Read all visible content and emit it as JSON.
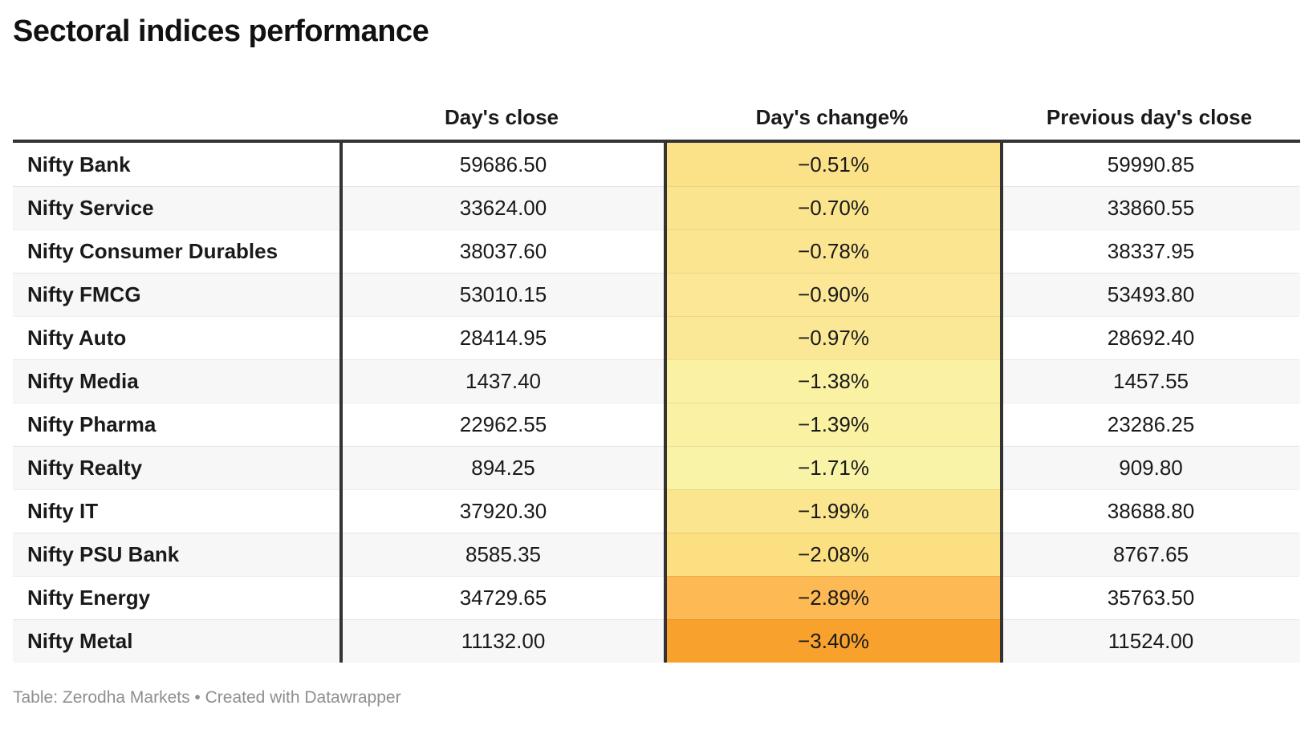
{
  "title": "Sectoral indices performance",
  "chart_data": {
    "type": "table",
    "title": "Sectoral indices performance",
    "columns": [
      "",
      "Day's close",
      "Day's change%",
      "Previous day's close"
    ],
    "heatmap_column": "Day's change%",
    "rows": [
      {
        "label": "Nifty Bank",
        "days_close": "59686.50",
        "days_change": "−0.51%",
        "days_change_value": -0.51,
        "prev_close": "59990.85",
        "cell_color": "#fbe289"
      },
      {
        "label": "Nifty Service",
        "days_close": "33624.00",
        "days_change": "−0.70%",
        "days_change_value": -0.7,
        "prev_close": "33860.55",
        "cell_color": "#fbe48e"
      },
      {
        "label": "Nifty Consumer Durables",
        "days_close": "38037.60",
        "days_change": "−0.78%",
        "days_change_value": -0.78,
        "prev_close": "38337.95",
        "cell_color": "#fbe591"
      },
      {
        "label": "Nifty FMCG",
        "days_close": "53010.15",
        "days_change": "−0.90%",
        "days_change_value": -0.9,
        "prev_close": "53493.80",
        "cell_color": "#fbe795"
      },
      {
        "label": "Nifty Auto",
        "days_close": "28414.95",
        "days_change": "−0.97%",
        "days_change_value": -0.97,
        "prev_close": "28692.40",
        "cell_color": "#fbe897"
      },
      {
        "label": "Nifty Media",
        "days_close": "1437.40",
        "days_change": "−1.38%",
        "days_change_value": -1.38,
        "prev_close": "1457.55",
        "cell_color": "#faf1a2"
      },
      {
        "label": "Nifty Pharma",
        "days_close": "22962.55",
        "days_change": "−1.39%",
        "days_change_value": -1.39,
        "prev_close": "23286.25",
        "cell_color": "#faf1a3"
      },
      {
        "label": "Nifty Realty",
        "days_close": "894.25",
        "days_change": "−1.71%",
        "days_change_value": -1.71,
        "prev_close": "909.80",
        "cell_color": "#f9f3a7"
      },
      {
        "label": "Nifty IT",
        "days_close": "37920.30",
        "days_change": "−1.99%",
        "days_change_value": -1.99,
        "prev_close": "38688.80",
        "cell_color": "#fbe58e"
      },
      {
        "label": "Nifty PSU Bank",
        "days_close": "8585.35",
        "days_change": "−2.08%",
        "days_change_value": -2.08,
        "prev_close": "8767.65",
        "cell_color": "#fbdf81"
      },
      {
        "label": "Nifty Energy",
        "days_close": "34729.65",
        "days_change": "−2.89%",
        "days_change_value": -2.89,
        "prev_close": "35763.50",
        "cell_color": "#fcb954"
      },
      {
        "label": "Nifty Metal",
        "days_close": "11132.00",
        "days_change": "−3.40%",
        "days_change_value": -3.4,
        "prev_close": "11524.00",
        "cell_color": "#f9a12d"
      }
    ]
  },
  "footer": {
    "text": "Table: Zerodha Markets • Created with Datawrapper"
  },
  "colors": {
    "border_dark": "#333333",
    "zebra_row": "#f7f7f7",
    "text": "#1a1a1a",
    "footer_text": "#8f8f8f",
    "background": "#ffffff"
  }
}
